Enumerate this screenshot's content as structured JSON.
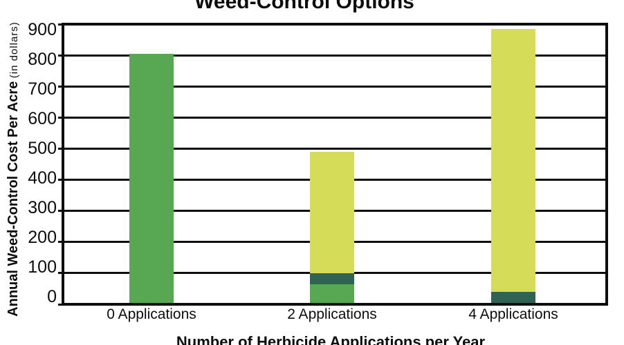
{
  "chart_data": {
    "type": "bar",
    "stacked": true,
    "title": "Weed-Control Options",
    "xlabel": "Number of Herbicide Applications per Year",
    "ylabel": "Annual Weed-Control Cost Per Acre",
    "ylabel_note": "(in dollars)",
    "categories": [
      "0 Applications",
      "2 Applications",
      "4 Applications"
    ],
    "series": [
      {
        "name": "medium-green",
        "color": "#58a753",
        "values": [
          800,
          60,
          0
        ]
      },
      {
        "name": "dark-green",
        "color": "#2f6454",
        "values": [
          0,
          35,
          35
        ]
      },
      {
        "name": "yellow-green",
        "color": "#d5dd58",
        "values": [
          0,
          390,
          845
        ]
      }
    ],
    "bar_totals": [
      800,
      485,
      880
    ],
    "ylim": [
      0,
      900
    ],
    "ytick_step": 100,
    "yticks": [
      0,
      100,
      200,
      300,
      400,
      500,
      600,
      700,
      800,
      900
    ],
    "grid": "horizontal",
    "legend_position": "none",
    "axis_color": "#0d0d0d",
    "background_color": "#ffffff"
  }
}
